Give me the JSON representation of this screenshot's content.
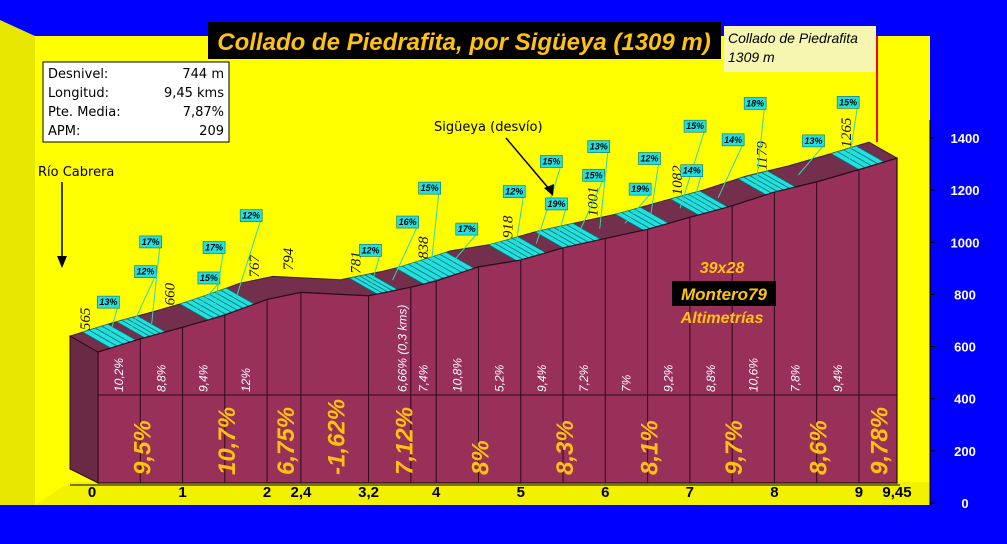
{
  "title": "Collado de Piedrafita, por Sigüeya (1309 m)",
  "summit_label": [
    "Collado de Piedrafita",
    "1309 m"
  ],
  "stats": [
    {
      "label": "Desnivel:",
      "value": "744 m"
    },
    {
      "label": "Longitud:",
      "value": "9,45 kms"
    },
    {
      "label": "Pte. Media:",
      "value": "7,87%"
    },
    {
      "label": "APM:",
      "value": "209"
    }
  ],
  "place_labels": [
    {
      "text": "Río Cabrera"
    },
    {
      "text": "Sigüeya (desvío)"
    }
  ],
  "credits": [
    "39x28",
    "Montero79",
    "Altimetrías"
  ],
  "colors": {
    "background": "#0000ff",
    "panel": "#ffff00",
    "profile_front": "#98305a",
    "profile_top": "#742f4c",
    "steep_stripe": "#22e0e0",
    "gradient_text": "#ffc20e",
    "callout_line": "#2fd7b0"
  },
  "chart_data": {
    "type": "area",
    "xlabel": "",
    "ylabel": "",
    "ylim": [
      0,
      1400
    ],
    "y_ticks": [
      "0",
      "200",
      "400",
      "600",
      "800",
      "1000",
      "1200",
      "1400"
    ],
    "x_tick_labels": [
      "0",
      "1",
      "2",
      "2,4",
      "3,2",
      "4",
      "5",
      "6",
      "7",
      "8",
      "9",
      "9,45"
    ],
    "x_tick_values": [
      0,
      1,
      2,
      2.4,
      3.2,
      4,
      5,
      6,
      7,
      8,
      9,
      9.45
    ],
    "profile": [
      {
        "km": 0,
        "alt": 565
      },
      {
        "km": 0.5,
        "alt": 616
      },
      {
        "km": 1,
        "alt": 660
      },
      {
        "km": 1.5,
        "alt": 707
      },
      {
        "km": 2,
        "alt": 767
      },
      {
        "km": 2.4,
        "alt": 794
      },
      {
        "km": 3.2,
        "alt": 781
      },
      {
        "km": 3.7,
        "alt": 814
      },
      {
        "km": 4,
        "alt": 838
      },
      {
        "km": 4.5,
        "alt": 892
      },
      {
        "km": 5,
        "alt": 918
      },
      {
        "km": 5.5,
        "alt": 965
      },
      {
        "km": 6,
        "alt": 1001
      },
      {
        "km": 6.5,
        "alt": 1036
      },
      {
        "km": 7,
        "alt": 1082
      },
      {
        "km": 7.5,
        "alt": 1126
      },
      {
        "km": 8,
        "alt": 1179
      },
      {
        "km": 8.5,
        "alt": 1218
      },
      {
        "km": 9,
        "alt": 1265
      },
      {
        "km": 9.45,
        "alt": 1309
      }
    ],
    "altitude_labels": [
      {
        "km": 0,
        "text": "565"
      },
      {
        "km": 1,
        "text": "660"
      },
      {
        "km": 2,
        "text": "767"
      },
      {
        "km": 2.4,
        "text": "794"
      },
      {
        "km": 3.2,
        "text": "781"
      },
      {
        "km": 4,
        "text": "838"
      },
      {
        "km": 5,
        "text": "918"
      },
      {
        "km": 6,
        "text": "1001"
      },
      {
        "km": 7,
        "text": "1082"
      },
      {
        "km": 8,
        "text": "1179"
      },
      {
        "km": 9,
        "text": "1265"
      }
    ],
    "half_km_gradients": [
      {
        "km": 0.25,
        "text": "10,2%"
      },
      {
        "km": 0.75,
        "text": "8,8%"
      },
      {
        "km": 1.25,
        "text": "9,4%"
      },
      {
        "km": 1.75,
        "text": "12%"
      },
      {
        "km": 3.6,
        "text": "6,66% (0,3 kms)"
      },
      {
        "km": 3.85,
        "text": "7,4%"
      },
      {
        "km": 4.25,
        "text": "10,8%"
      },
      {
        "km": 4.75,
        "text": "5,2%"
      },
      {
        "km": 5.25,
        "text": "9,4%"
      },
      {
        "km": 5.75,
        "text": "7,2%"
      },
      {
        "km": 6.25,
        "text": "7%"
      },
      {
        "km": 6.75,
        "text": "9,2%"
      },
      {
        "km": 7.25,
        "text": "8,8%"
      },
      {
        "km": 7.75,
        "text": "10,6%"
      },
      {
        "km": 8.25,
        "text": "7,8%"
      },
      {
        "km": 8.75,
        "text": "9,4%"
      }
    ],
    "segment_gradients": [
      {
        "km": 0.5,
        "text": "9,5%"
      },
      {
        "km": 1.5,
        "text": "10,7%"
      },
      {
        "km": 2.2,
        "text": "6,75%"
      },
      {
        "km": 2.8,
        "text": "-1,62%"
      },
      {
        "km": 3.6,
        "text": "7,12%"
      },
      {
        "km": 4.5,
        "text": "8%"
      },
      {
        "km": 5.5,
        "text": "8,3%"
      },
      {
        "km": 6.5,
        "text": "8,1%"
      },
      {
        "km": 7.5,
        "text": "9,7%"
      },
      {
        "km": 8.5,
        "text": "8,6%"
      },
      {
        "km": 9.22,
        "text": "9,78%"
      }
    ],
    "max_gradient_tags": [
      {
        "km": 0.3,
        "text": "13%"
      },
      {
        "km": 0.55,
        "text": "12%"
      },
      {
        "km": 0.8,
        "text": "17%"
      },
      {
        "km": 1.3,
        "text": "15%"
      },
      {
        "km": 1.55,
        "text": "17%"
      },
      {
        "km": 1.8,
        "text": "12%"
      },
      {
        "km": 3.4,
        "text": "12%"
      },
      {
        "km": 3.65,
        "text": "16%"
      },
      {
        "km": 4.1,
        "text": "15%"
      },
      {
        "km": 4.35,
        "text": "17%"
      },
      {
        "km": 5.1,
        "text": "12%"
      },
      {
        "km": 5.35,
        "text": "15%"
      },
      {
        "km": 5.6,
        "text": "19%"
      },
      {
        "km": 5.85,
        "text": "15%"
      },
      {
        "km": 6.1,
        "text": "13%"
      },
      {
        "km": 6.4,
        "text": "19%"
      },
      {
        "km": 6.7,
        "text": "12%"
      },
      {
        "km": 7.05,
        "text": "15%"
      },
      {
        "km": 7.2,
        "text": "14%"
      },
      {
        "km": 7.5,
        "text": "14%"
      },
      {
        "km": 7.95,
        "text": "18%"
      },
      {
        "km": 8.45,
        "text": "13%"
      },
      {
        "km": 9.05,
        "text": "15%"
      }
    ],
    "steep_sections": [
      [
        0.15,
        0.45
      ],
      [
        0.55,
        0.8
      ],
      [
        1.3,
        1.85
      ],
      [
        3.3,
        3.55
      ],
      [
        3.85,
        4.45
      ],
      [
        4.95,
        5.3
      ],
      [
        5.5,
        5.95
      ],
      [
        6.45,
        6.75
      ],
      [
        7.1,
        7.45
      ],
      [
        7.9,
        8.25
      ],
      [
        9.0,
        9.3
      ]
    ]
  }
}
